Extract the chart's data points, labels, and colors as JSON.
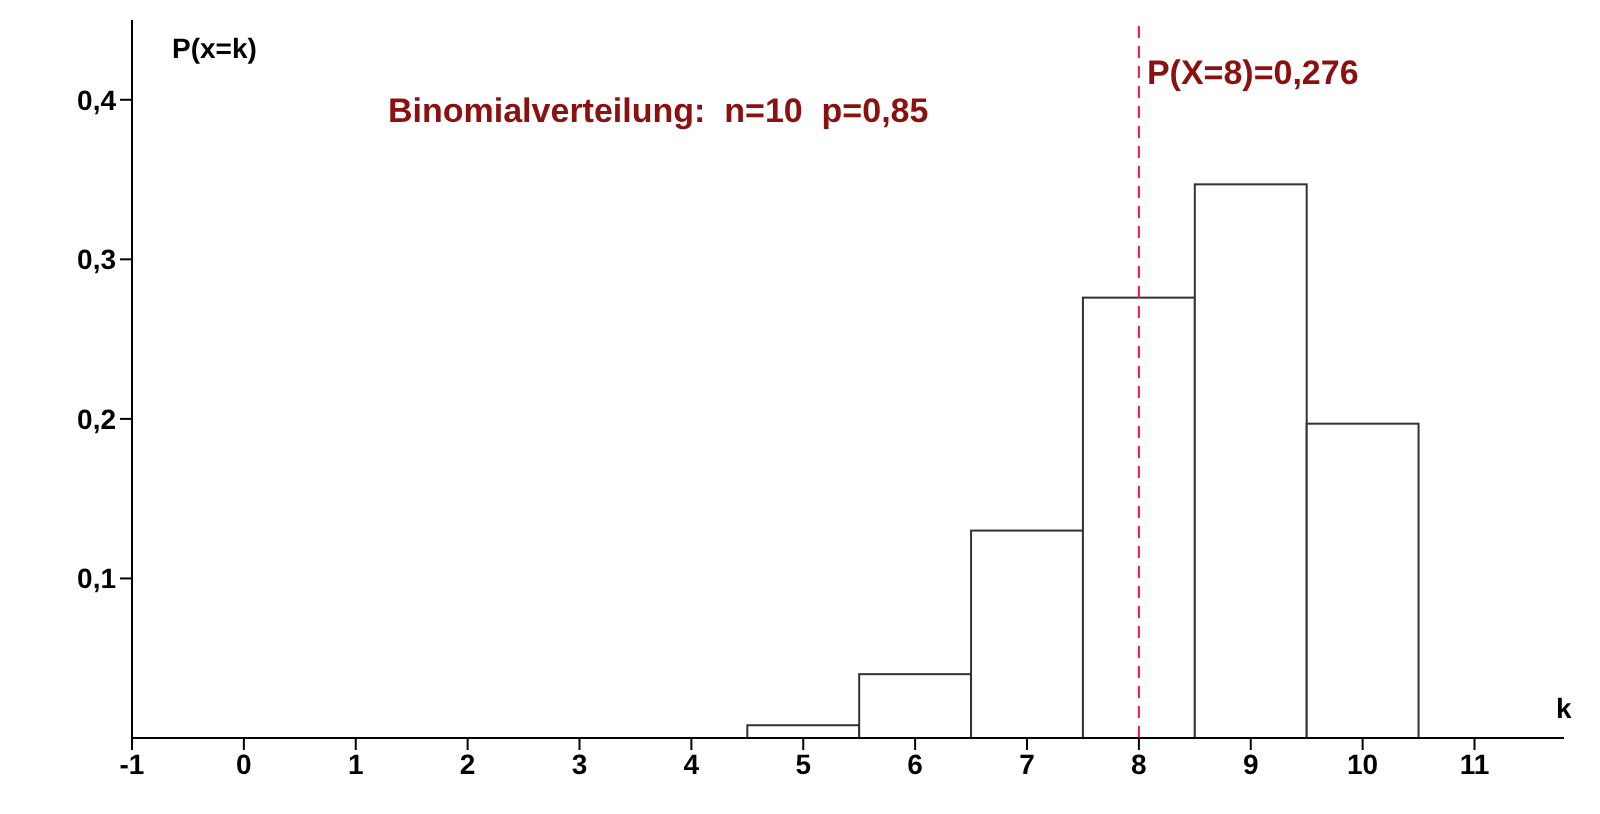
{
  "chart_data": {
    "type": "histogram",
    "title": "Binomialverteilung:  n=10  p=0,85",
    "xlabel": "k",
    "ylabel": "P(x=k)",
    "bins": [
      -0.5,
      0.5,
      1.5,
      2.5,
      3.5,
      4.5,
      5.5,
      6.5,
      7.5,
      8.5,
      9.5,
      10.5
    ],
    "values": [
      0,
      0,
      0,
      0,
      0,
      0.008,
      0.04,
      0.13,
      0.276,
      0.347,
      0.197
    ],
    "color": "#ffffff",
    "xlim": [
      -1,
      11.8
    ],
    "xticks": [
      -1,
      0,
      1,
      2,
      3,
      4,
      5,
      6,
      7,
      8,
      9,
      10,
      11
    ],
    "ylim": [
      0,
      0.45
    ],
    "yticks": [
      {
        "value": 0.1,
        "label": "0,1"
      },
      {
        "value": 0.2,
        "label": "0,2"
      },
      {
        "value": 0.3,
        "label": "0,3"
      },
      {
        "value": 0.4,
        "label": "0,4"
      }
    ],
    "ref_lines": [
      {
        "axis": "x",
        "value": 8,
        "label": "P(X=8)=0,276",
        "color": "#e8194a",
        "line_style": "dashed"
      }
    ],
    "grid": false,
    "legend": false
  }
}
